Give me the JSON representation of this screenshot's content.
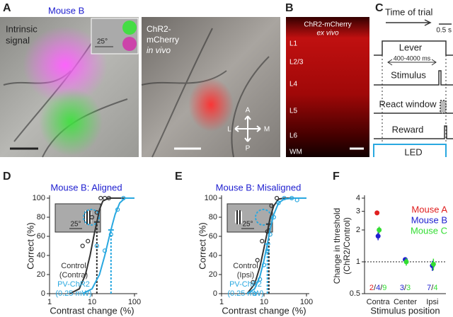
{
  "panel_a": {
    "letter": "A",
    "mouse": "Mouse B",
    "left_label": [
      "Intrinsic",
      "signal"
    ],
    "scale": "25°",
    "right_label": [
      "ChR2-",
      "mCherry",
      "in vivo"
    ],
    "compass": {
      "a": "A",
      "p": "P",
      "l": "L",
      "m": "M"
    }
  },
  "panel_b": {
    "letter": "B",
    "title": [
      "ChR2-mCherry",
      "ex vivo"
    ],
    "layers": [
      "L1",
      "L2/3",
      "L4",
      "L5",
      "L6",
      "WM"
    ]
  },
  "panel_c": {
    "letter": "C",
    "time": "Time of trial",
    "scale": "0.5 s",
    "lever": "Lever",
    "delay": "400-4000 ms",
    "stimulus": "Stimulus",
    "react": "React window",
    "reward": "Reward",
    "led": "LED"
  },
  "chart_data": [
    {
      "type": "psychometric",
      "letter": "D",
      "title": "Mouse B: Aligned",
      "xlabel": "Contrast change (%)",
      "ylabel": "Correct (%)",
      "xscale": "log",
      "xlim": [
        1,
        100
      ],
      "xticks": [
        1,
        10,
        100
      ],
      "ylim": [
        0,
        100
      ],
      "yticks": [
        0,
        20,
        40,
        60,
        80,
        100
      ],
      "inset_scale": "25°",
      "inset_side": "right",
      "series": [
        {
          "name": [
            "Control",
            "(Contra)"
          ],
          "color": "#333333",
          "x": [
            6,
            8,
            10,
            13,
            16,
            20,
            25
          ],
          "values": [
            50,
            55,
            80,
            85,
            100,
            100,
            100
          ],
          "threshold": 13,
          "fit_x": [
            3,
            5,
            7,
            9,
            11,
            13,
            15,
            18,
            25,
            100
          ],
          "fit": [
            0,
            5,
            20,
            40,
            60,
            75,
            88,
            97,
            100,
            100
          ]
        },
        {
          "name": [
            "PV-ChR2",
            "(0.25 mW)"
          ],
          "color": "#29a8e0",
          "x": [
            13,
            20,
            28,
            40,
            55
          ],
          "values": [
            50,
            45,
            62,
            88,
            100
          ],
          "threshold": 28,
          "fit_x": [
            6,
            10,
            15,
            20,
            25,
            30,
            35,
            45,
            60,
            100
          ],
          "fit": [
            0,
            5,
            20,
            40,
            58,
            72,
            83,
            95,
            100,
            100
          ]
        }
      ]
    },
    {
      "type": "psychometric",
      "letter": "E",
      "title": "Mouse B: Misaligned",
      "xlabel": "Contrast change (%)",
      "ylabel": "Correct (%)",
      "xscale": "log",
      "xlim": [
        1,
        100
      ],
      "xticks": [
        1,
        10,
        100
      ],
      "ylim": [
        0,
        100
      ],
      "yticks": [
        0,
        20,
        40,
        60,
        80,
        100
      ],
      "inset_scale": "25°",
      "inset_side": "left",
      "series": [
        {
          "name": [
            "Control",
            "(Ipsi)"
          ],
          "color": "#333333",
          "x": [
            5.5,
            7,
            9,
            12,
            15,
            20
          ],
          "values": [
            12,
            35,
            55,
            65,
            92,
            100
          ],
          "threshold": 13,
          "fit_x": [
            4,
            6,
            8,
            10,
            12,
            14,
            17,
            22,
            30,
            100
          ],
          "fit": [
            0,
            10,
            28,
            48,
            65,
            80,
            92,
            99,
            100,
            100
          ]
        },
        {
          "name": [
            "PV-ChR2",
            "(0.25 mW)"
          ],
          "color": "#29a8e0",
          "x": [
            6,
            8,
            10,
            12,
            14,
            17,
            22,
            30,
            45,
            60
          ],
          "values": [
            0,
            15,
            30,
            45,
            62,
            80,
            95,
            100,
            100,
            98
          ],
          "threshold": 12,
          "fit_x": [
            4,
            6,
            8,
            10,
            12,
            14,
            17,
            22,
            30,
            50,
            100
          ],
          "fit": [
            0,
            5,
            18,
            35,
            52,
            68,
            83,
            95,
            99,
            100,
            100
          ]
        }
      ]
    },
    {
      "type": "dot",
      "letter": "F",
      "ylabel": [
        "Change in threshold",
        "(ChR2/Control)"
      ],
      "xlabel": "Stimulus position",
      "categories": [
        "Contra",
        "Center",
        "Ipsi"
      ],
      "yscale": "log",
      "ylim": [
        0.5,
        4
      ],
      "yticks": [
        0.5,
        1,
        2,
        3,
        4
      ],
      "reference_line": 1,
      "n_separator": "/",
      "series": [
        {
          "name": "Mouse A",
          "color": "#e02020",
          "values": [
            2.9,
            null,
            null
          ],
          "errors": [
            null,
            null,
            null
          ],
          "n": [
            2,
            null,
            null
          ]
        },
        {
          "name": "Mouse B",
          "color": "#2020d0",
          "values": [
            1.75,
            1.05,
            0.92
          ],
          "errors": [
            0.15,
            0.05,
            0.1
          ],
          "n": [
            4,
            3,
            7
          ]
        },
        {
          "name": "Mouse C",
          "color": "#33dd33",
          "values": [
            2.0,
            1.0,
            0.95
          ],
          "errors": [
            0.15,
            0.08,
            0.12
          ],
          "n": [
            9,
            3,
            4
          ]
        }
      ]
    }
  ]
}
